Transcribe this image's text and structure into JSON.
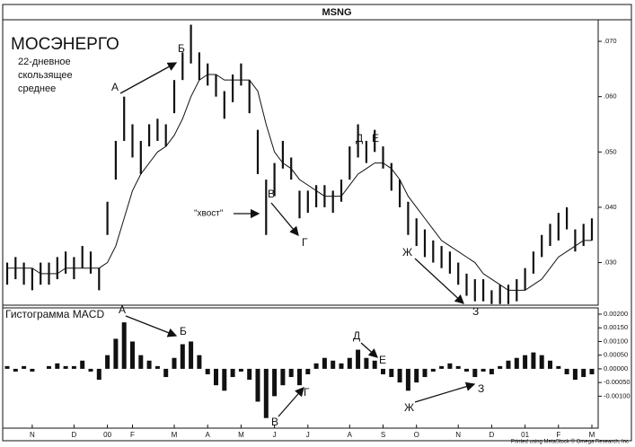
{
  "chart_data": [
    {
      "type": "hilo",
      "title": "MSNG",
      "label": "МОСЭНЕРГО",
      "subtitle": [
        "22-дневное",
        "скользящее",
        "среднее"
      ],
      "high": [
        0.03,
        0.031,
        0.03,
        0.029,
        0.03,
        0.03,
        0.031,
        0.032,
        0.031,
        0.033,
        0.032,
        0.029,
        0.041,
        0.052,
        0.06,
        0.055,
        0.052,
        0.055,
        0.056,
        0.055,
        0.063,
        0.068,
        0.073,
        0.068,
        0.066,
        0.064,
        0.061,
        0.064,
        0.066,
        0.063,
        0.054,
        0.045,
        0.048,
        0.052,
        0.049,
        0.043,
        0.043,
        0.044,
        0.044,
        0.043,
        0.045,
        0.051,
        0.055,
        0.052,
        0.054,
        0.051,
        0.048,
        0.045,
        0.041,
        0.038,
        0.036,
        0.034,
        0.033,
        0.032,
        0.03,
        0.028,
        0.027,
        0.027,
        0.025,
        0.026,
        0.026,
        0.027,
        0.029,
        0.032,
        0.035,
        0.037,
        0.039,
        0.04,
        0.036,
        0.037,
        0.038
      ],
      "low": [
        0.026,
        0.027,
        0.026,
        0.025,
        0.026,
        0.026,
        0.027,
        0.028,
        0.027,
        0.029,
        0.028,
        0.025,
        0.035,
        0.045,
        0.052,
        0.049,
        0.046,
        0.051,
        0.052,
        0.051,
        0.057,
        0.063,
        0.066,
        0.063,
        0.062,
        0.06,
        0.056,
        0.059,
        0.062,
        0.057,
        0.046,
        0.035,
        0.042,
        0.047,
        0.045,
        0.038,
        0.039,
        0.04,
        0.04,
        0.039,
        0.041,
        0.045,
        0.049,
        0.048,
        0.05,
        0.047,
        0.043,
        0.04,
        0.035,
        0.033,
        0.031,
        0.03,
        0.029,
        0.028,
        0.026,
        0.024,
        0.023,
        0.023,
        0.0225,
        0.0225,
        0.0225,
        0.023,
        0.025,
        0.028,
        0.031,
        0.033,
        0.034,
        0.036,
        0.032,
        0.033,
        0.034
      ],
      "moving_average": [
        0.029,
        0.029,
        0.029,
        0.029,
        0.028,
        0.028,
        0.028,
        0.029,
        0.029,
        0.029,
        0.029,
        0.029,
        0.03,
        0.033,
        0.038,
        0.043,
        0.046,
        0.048,
        0.05,
        0.051,
        0.053,
        0.056,
        0.06,
        0.063,
        0.064,
        0.064,
        0.063,
        0.063,
        0.063,
        0.063,
        0.061,
        0.055,
        0.05,
        0.048,
        0.047,
        0.045,
        0.044,
        0.043,
        0.042,
        0.042,
        0.042,
        0.044,
        0.046,
        0.047,
        0.048,
        0.048,
        0.047,
        0.045,
        0.042,
        0.04,
        0.038,
        0.036,
        0.034,
        0.033,
        0.032,
        0.031,
        0.03,
        0.028,
        0.027,
        0.026,
        0.025,
        0.025,
        0.025,
        0.026,
        0.027,
        0.029,
        0.031,
        0.032,
        0.033,
        0.034,
        0.034
      ],
      "color": "#111111",
      "ylim": [
        0.0223,
        0.0739
      ],
      "yticks": [
        {
          "value": 0.07,
          "label": ".070"
        },
        {
          "value": 0.06,
          "label": ".060"
        },
        {
          "value": 0.05,
          "label": ".050"
        },
        {
          "value": 0.04,
          "label": ".040"
        },
        {
          "value": 0.03,
          "label": ".030"
        }
      ],
      "annotations": [
        "А",
        "Б",
        "В",
        "Г",
        "Д",
        "Е",
        "Ж",
        "З",
        "\"хвост\""
      ]
    },
    {
      "type": "bar",
      "title": "Гистограмма MACD",
      "categories": [
        null,
        null,
        null,
        "N",
        null,
        null,
        null,
        null,
        "D",
        null,
        null,
        null,
        "00",
        null,
        null,
        "F",
        null,
        null,
        null,
        null,
        "M",
        null,
        null,
        null,
        "A",
        null,
        null,
        null,
        "M",
        null,
        null,
        null,
        "J",
        null,
        null,
        null,
        "J",
        null,
        null,
        null,
        null,
        "A",
        null,
        null,
        null,
        "S",
        null,
        null,
        null,
        "O",
        null,
        null,
        null,
        null,
        "N",
        null,
        null,
        null,
        "D",
        null,
        null,
        null,
        "01",
        null,
        null,
        null,
        "F",
        null,
        null,
        null,
        "M"
      ],
      "values": [
        0.0001,
        -0.0001,
        0.0001,
        -0.0001,
        0,
        0.0001,
        0.0002,
        0.0001,
        0.0001,
        0.0003,
        -0.0001,
        -0.0004,
        0.0005,
        0.0011,
        0.0017,
        0.001,
        0.0005,
        0.0003,
        0.0001,
        -0.0003,
        0.0004,
        0.0009,
        0.001,
        0.0005,
        -0.0002,
        -0.0006,
        -0.0008,
        -0.0003,
        -0.0001,
        -0.0004,
        -0.0012,
        -0.0018,
        -0.001,
        -0.0006,
        -0.0003,
        -0.0006,
        -0.0002,
        0.0002,
        0.0004,
        0.0003,
        0.0002,
        0.0004,
        0.0007,
        0.0004,
        0.0003,
        -0.0002,
        -0.0003,
        -0.0005,
        -0.0008,
        -0.0005,
        -0.0003,
        -0.0001,
        0.0001,
        0.0002,
        0.0001,
        -0.0001,
        -0.0003,
        -0.0001,
        -0.0002,
        0.0001,
        0.0003,
        0.0004,
        0.0005,
        0.0006,
        0.0005,
        0.0003,
        0.0001,
        -0.0002,
        -0.0004,
        -0.0003,
        -0.0002
      ],
      "color": "#111111",
      "ylim": [
        -0.00217,
        0.00223
      ],
      "yticks": [
        {
          "value": 0.002,
          "label": "0.00200"
        },
        {
          "value": 0.0015,
          "label": "0.00150"
        },
        {
          "value": 0.001,
          "label": "0.00100"
        },
        {
          "value": 0.0005,
          "label": "0.00050"
        },
        {
          "value": 0,
          "label": "0.00000"
        },
        {
          "value": -0.0005,
          "label": "-0.00050"
        },
        {
          "value": -0.001,
          "label": "-0.00100"
        }
      ],
      "annotations": [
        "А",
        "Б",
        "В",
        "Г",
        "Д",
        "Е",
        "Ж",
        "З"
      ]
    }
  ],
  "footer": "Printed using MetaStock © Omega Research, Inc"
}
